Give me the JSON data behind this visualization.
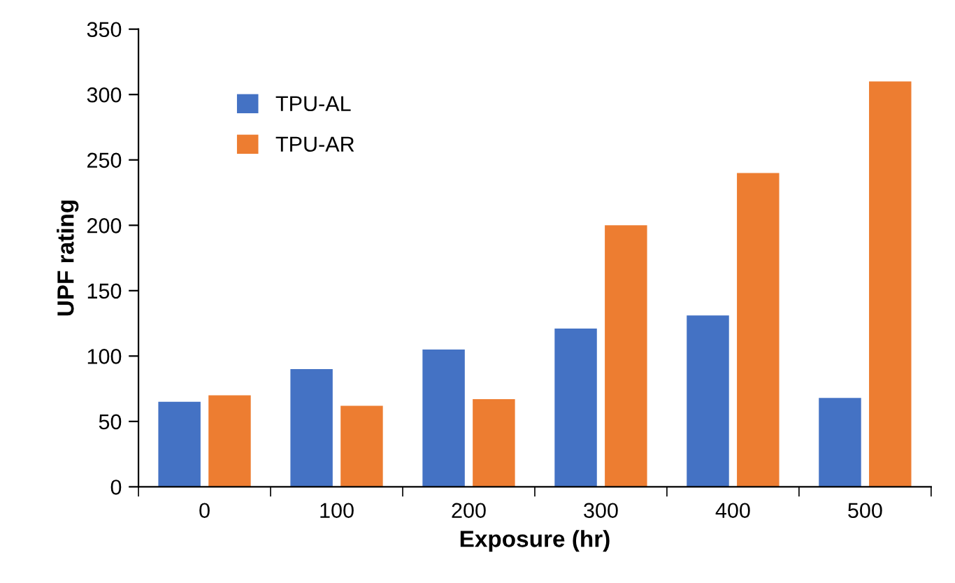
{
  "chart_data": {
    "type": "bar",
    "xlabel": "Exposure (hr)",
    "ylabel": "UPF rating",
    "categories": [
      "0",
      "100",
      "200",
      "300",
      "400",
      "500"
    ],
    "series": [
      {
        "name": "TPU-AL",
        "color": "#4472c4",
        "values": [
          65,
          90,
          105,
          121,
          131,
          68
        ]
      },
      {
        "name": "TPU-AR",
        "color": "#ed7d31",
        "values": [
          70,
          62,
          67,
          200,
          240,
          310
        ]
      }
    ],
    "ylim": [
      0,
      350
    ],
    "yticks": [
      0,
      50,
      100,
      150,
      200,
      250,
      300,
      350
    ],
    "grid": false,
    "legend": "top left"
  }
}
